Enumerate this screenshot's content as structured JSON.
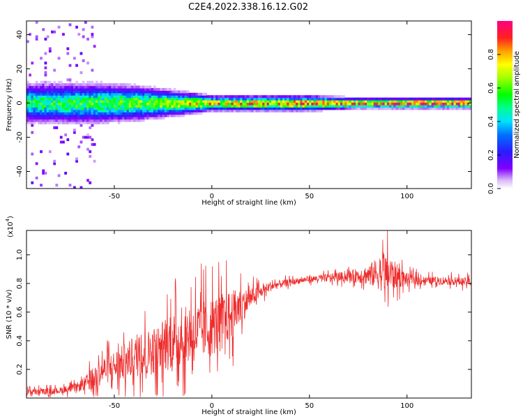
{
  "figure": {
    "title": "C2E4.2022.338.16.12.G02"
  },
  "colors": {
    "snr_line": "#ee2c2c",
    "axis": "#000000"
  },
  "chart_data": [
    {
      "type": "heatmap",
      "xlabel": "Height of straight line (km)",
      "ylabel": "Frequency (Hz)",
      "xlim": [
        -95,
        133
      ],
      "ylim": [
        -50,
        48
      ],
      "xticks": [
        -50,
        0,
        50,
        100
      ],
      "yticks": [
        -40,
        -20,
        0,
        20,
        40
      ],
      "grid": false,
      "colormap": "rainbow (purple-blue-cyan-green-yellow-orange-red-magenta)",
      "colorbar": {
        "label": "Normalized spectral amplitude",
        "range": [
          0,
          1
        ],
        "ticks": [
          "0.0",
          "0.2",
          "0.4",
          "0.6",
          "0.8"
        ]
      },
      "description_data": {
        "band_center_hz": 0,
        "band_halfwidth_hz": [
          {
            "x": -95,
            "hw": 8
          },
          {
            "x": -60,
            "hw": 8
          },
          {
            "x": -40,
            "hw": 7
          },
          {
            "x": -20,
            "hw": 5
          },
          {
            "x": 0,
            "hw": 3
          },
          {
            "x": 50,
            "hw": 3
          },
          {
            "x": 75,
            "hw": 2
          },
          {
            "x": 133,
            "hw": 2
          }
        ],
        "band_peak_amplitude": [
          {
            "x": -95,
            "a": 0.5
          },
          {
            "x": -60,
            "a": 0.55
          },
          {
            "x": -40,
            "a": 0.6
          },
          {
            "x": -20,
            "a": 0.7
          },
          {
            "x": 0,
            "a": 0.75
          },
          {
            "x": 30,
            "a": 0.8
          },
          {
            "x": 70,
            "a": 0.85
          },
          {
            "x": 100,
            "a": 0.95
          },
          {
            "x": 133,
            "a": 0.95
          }
        ]
      }
    },
    {
      "type": "line",
      "xlabel": "Height of straight line (km)",
      "ylabel": "SNR (10 * v/v)",
      "y_multiplier": "(x10",
      "y_multiplier_exp": "4",
      "y_multiplier_close": ")",
      "xlim": [
        -95,
        133
      ],
      "ylim": [
        0,
        1.17
      ],
      "xticks": [
        -50,
        0,
        50,
        100
      ],
      "yticks": [
        0.2,
        0.4,
        0.6,
        0.8,
        1.0
      ],
      "grid": false,
      "series": [
        {
          "envelope_x": [
            -95,
            -80,
            -70,
            -65,
            -60,
            -55,
            -50,
            -40,
            -30,
            -20,
            -10,
            0,
            10,
            20,
            25,
            30,
            40,
            50,
            60,
            70,
            80,
            85,
            90,
            95,
            100,
            110,
            120,
            133
          ],
          "baseline": [
            0.04,
            0.05,
            0.07,
            0.1,
            0.15,
            0.2,
            0.22,
            0.28,
            0.33,
            0.4,
            0.45,
            0.5,
            0.58,
            0.7,
            0.74,
            0.78,
            0.81,
            0.83,
            0.84,
            0.85,
            0.86,
            0.87,
            0.87,
            0.85,
            0.83,
            0.82,
            0.82,
            0.81
          ],
          "amplitude": [
            0.03,
            0.03,
            0.04,
            0.07,
            0.12,
            0.14,
            0.16,
            0.2,
            0.24,
            0.28,
            0.3,
            0.3,
            0.25,
            0.1,
            0.06,
            0.05,
            0.03,
            0.03,
            0.04,
            0.05,
            0.1,
            0.16,
            0.2,
            0.12,
            0.06,
            0.04,
            0.04,
            0.04
          ]
        }
      ]
    }
  ]
}
